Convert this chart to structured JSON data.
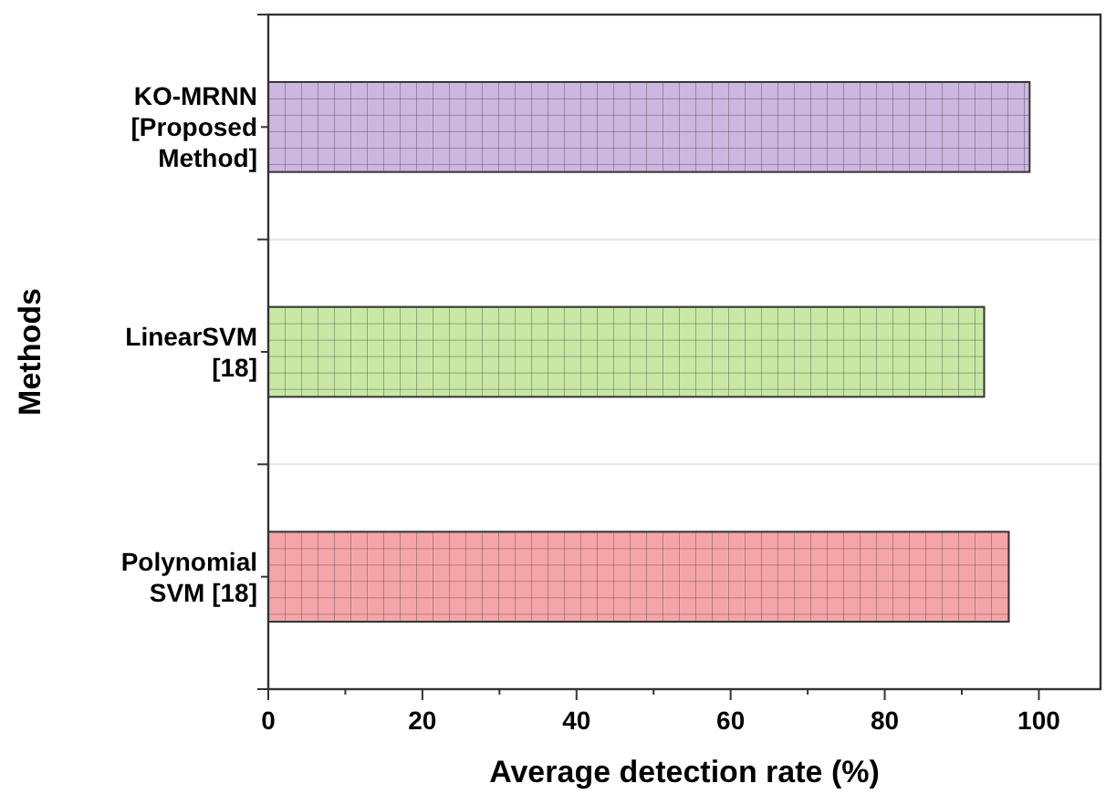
{
  "chart_data": {
    "type": "bar",
    "orientation": "horizontal",
    "xlabel": "Average detection rate (%)",
    "ylabel": "Methods",
    "categories": [
      "KO-MRNN [Proposed Method]",
      "LinearSVM [18]",
      "Polynomial SVM [18]"
    ],
    "values": [
      98.8,
      92.9,
      96.1
    ],
    "colors": [
      "#cdb6e0",
      "#c8e8a4",
      "#f5a5a8"
    ],
    "xlim": [
      0,
      108
    ],
    "xticks": [
      0,
      20,
      40,
      60,
      80,
      100
    ],
    "grid": "y"
  }
}
